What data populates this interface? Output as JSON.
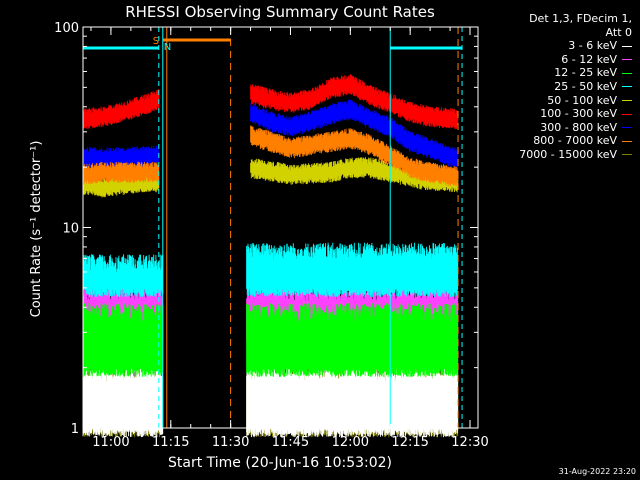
{
  "chart_data": {
    "type": "line",
    "title": "RHESSI Observing Summary Count Rates",
    "xlabel": "Start Time (20-Jun-16 10:53:02)",
    "ylabel": "Count Rate (s⁻¹ detector⁻¹)",
    "x_axis": {
      "start": "10:53",
      "end": "12:32",
      "ticks": [
        "11:00",
        "11:15",
        "11:30",
        "11:45",
        "12:00",
        "12:15",
        "12:30"
      ]
    },
    "y_axis": {
      "scale": "log",
      "ylim": [
        1,
        100
      ],
      "ticks": [
        "1",
        "10",
        "100"
      ]
    },
    "legend_header": [
      "Det 1,3, FDecim 1,",
      "Att 0"
    ],
    "series": [
      {
        "name": "3 - 6 keV",
        "color": "#ffffff",
        "segments": [
          {
            "x": [
              "10:53",
              "11:13"
            ],
            "y": [
              1,
              2
            ]
          },
          {
            "x": [
              "11:34",
              "12:27"
            ],
            "y": [
              1,
              2
            ]
          }
        ]
      },
      {
        "name": "6 - 12 keV",
        "color": "#ff40ff",
        "segments": [
          {
            "x": [
              "10:53",
              "11:13"
            ],
            "y": [
              3,
              5
            ]
          },
          {
            "x": [
              "11:34",
              "12:27"
            ],
            "y": [
              3,
              5
            ]
          }
        ]
      },
      {
        "name": "12 - 25 keV",
        "color": "#00ff00",
        "segments": [
          {
            "x": [
              "10:53",
              "11:13"
            ],
            "y": [
              2,
              4
            ]
          },
          {
            "x": [
              "11:34",
              "12:27"
            ],
            "y": [
              2,
              4
            ]
          }
        ]
      },
      {
        "name": "25 - 50 keV",
        "color": "#00ffff",
        "segments": [
          {
            "x": [
              "10:53",
              "11:13"
            ],
            "y": [
              5,
              7
            ]
          },
          {
            "x": [
              "11:34",
              "12:27"
            ],
            "y": [
              5,
              8
            ]
          }
        ]
      },
      {
        "name": "50 - 100 keV",
        "color": "#d2d200",
        "segments": [
          {
            "x": [
              "10:53",
              "10:58",
              "11:03",
              "11:08",
              "11:12"
            ],
            "y": [
              16.5,
              16,
              16.5,
              17,
              17
            ]
          },
          {
            "x": [
              "11:35",
              "11:45",
              "11:55",
              "12:00",
              "12:05",
              "12:10",
              "12:18",
              "12:27"
            ],
            "y": [
              20,
              18.5,
              19,
              20,
              20,
              19,
              17.5,
              17
            ]
          }
        ]
      },
      {
        "name": "100 - 300 keV",
        "color": "#ff0000",
        "segments": [
          {
            "x": [
              "10:53",
              "10:58",
              "11:03",
              "11:08",
              "11:12"
            ],
            "y": [
              35,
              36,
              38,
              41,
              44
            ]
          },
          {
            "x": [
              "11:35",
              "11:40",
              "11:45",
              "11:50",
              "11:55",
              "12:00",
              "12:05",
              "12:10",
              "12:15",
              "12:20",
              "12:27"
            ],
            "y": [
              47,
              44,
              42,
              44,
              50,
              52,
              46,
              42,
              38,
              36,
              35
            ]
          }
        ]
      },
      {
        "name": "300 - 800 keV",
        "color": "#0000ff",
        "segments": [
          {
            "x": [
              "10:53",
              "10:58",
              "11:03",
              "11:08",
              "11:12"
            ],
            "y": [
              22.5,
              22.5,
              22.5,
              22.8,
              23
            ]
          },
          {
            "x": [
              "11:35",
              "11:40",
              "11:45",
              "11:50",
              "11:55",
              "12:00",
              "12:05",
              "12:10",
              "12:15",
              "12:20",
              "12:27"
            ],
            "y": [
              38,
              34,
              32,
              34,
              37,
              39,
              35,
              32,
              27,
              25,
              22
            ]
          }
        ]
      },
      {
        "name": "800 - 7000 keV",
        "color": "#ff8000",
        "segments": [
          {
            "x": [
              "10:53",
              "10:58",
              "11:03",
              "11:08",
              "11:12"
            ],
            "y": [
              18.5,
              19,
              19,
              19,
              19
            ]
          },
          {
            "x": [
              "11:35",
              "11:40",
              "11:45",
              "11:50",
              "11:55",
              "12:00",
              "12:05",
              "12:10",
              "12:15",
              "12:20",
              "12:27"
            ],
            "y": [
              29,
              27,
              25,
              26,
              27,
              28,
              26,
              23,
              20,
              19,
              18
            ]
          }
        ]
      },
      {
        "name": "7000 - 15000 keV",
        "color": "#808000",
        "segments": [
          {
            "x": [
              "10:53",
              "11:13"
            ],
            "y": [
              1,
              2
            ]
          },
          {
            "x": [
              "11:34",
              "12:27"
            ],
            "y": [
              1,
              2
            ]
          }
        ]
      }
    ],
    "annotations": {
      "saa_label": "S",
      "night_label": "N",
      "cyan_day_bars": [
        [
          "10:53",
          "11:12"
        ],
        [
          "12:10",
          "12:28"
        ]
      ],
      "orange_saa_bar": [
        "11:13",
        "11:30"
      ],
      "vlines_cyan_solid": [
        "11:13",
        "12:10"
      ],
      "vlines_cyan_dashed": [
        "11:12",
        "12:28"
      ],
      "vlines_orange_solid": [
        "11:14"
      ],
      "vlines_orange_dashed": [
        "11:30",
        "12:27"
      ],
      "colors": {
        "day": "#00ffff",
        "saa": "#ff8000"
      }
    },
    "grid": false,
    "legend_position": "top-right"
  },
  "timestamp": "31-Aug-2022 23:20"
}
